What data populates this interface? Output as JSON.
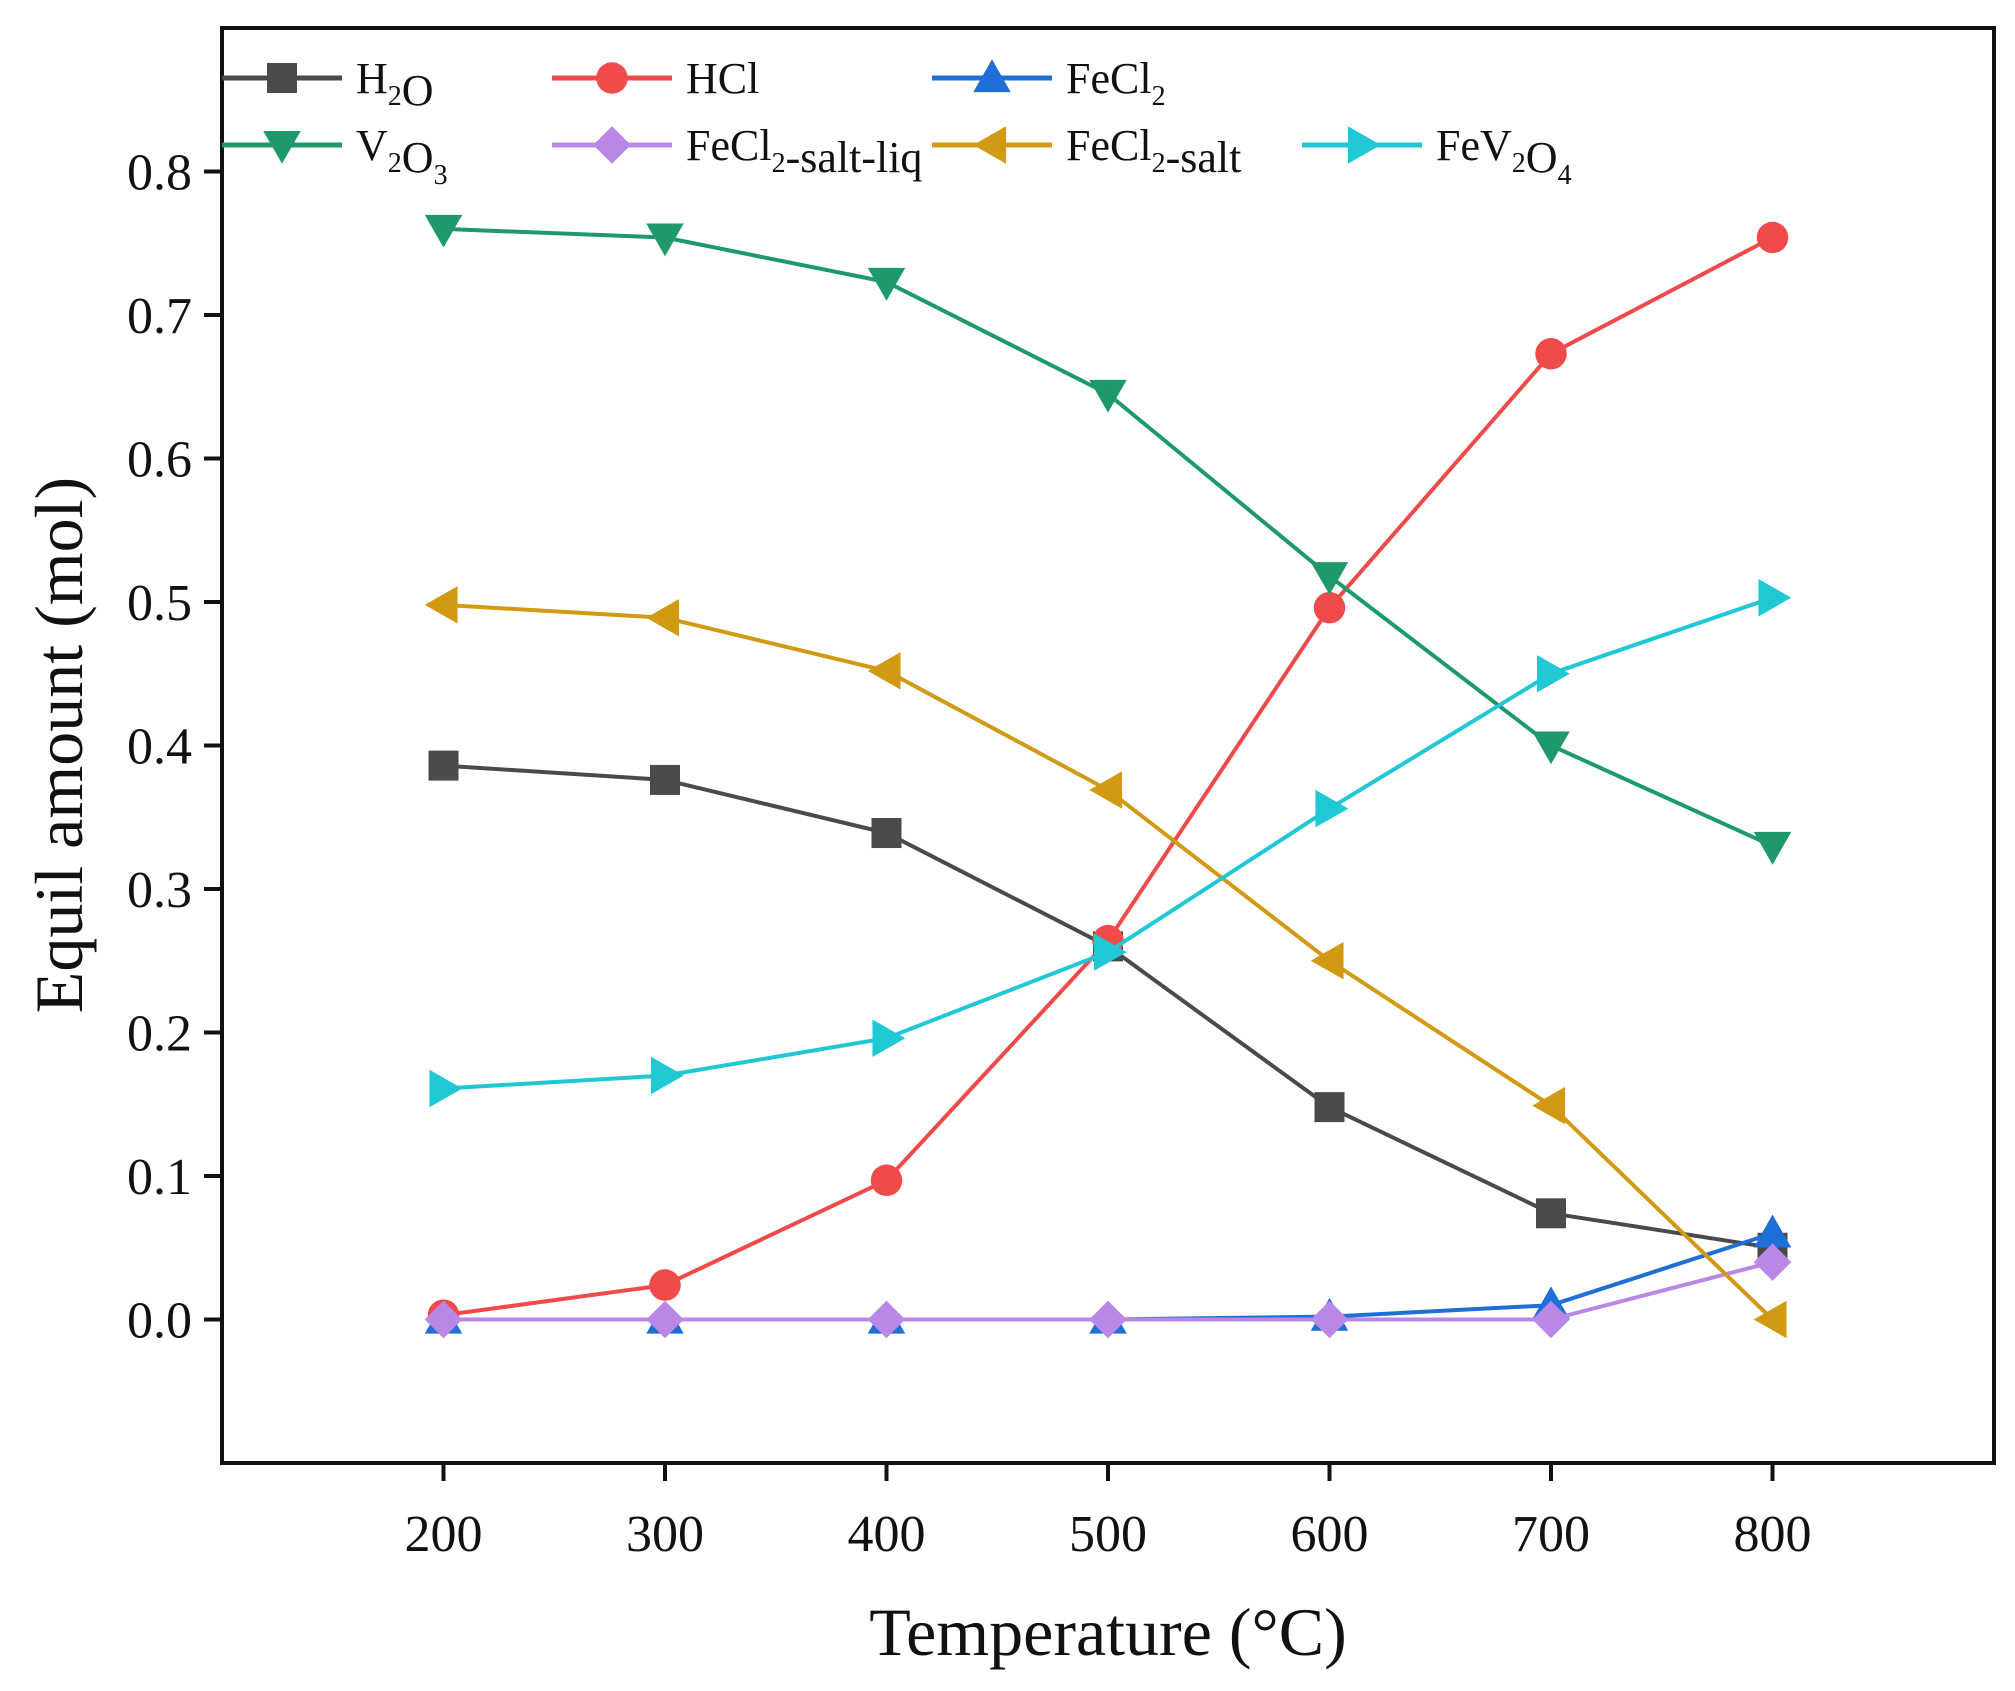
{
  "chart_data": {
    "type": "line",
    "xlabel": "Temperature (°C)",
    "ylabel": "Equil amount (mol)",
    "x": [
      200,
      300,
      400,
      500,
      600,
      700,
      800
    ],
    "xlim": [
      100,
      900
    ],
    "ylim": [
      -0.1,
      0.9
    ],
    "xticks": [
      "200",
      "300",
      "400",
      "500",
      "600",
      "700",
      "800"
    ],
    "yticks": [
      "0.0",
      "0.1",
      "0.2",
      "0.3",
      "0.4",
      "0.5",
      "0.6",
      "0.7",
      "0.8"
    ],
    "ytick_values": [
      0.0,
      0.1,
      0.2,
      0.3,
      0.4,
      0.5,
      0.6,
      0.7,
      0.8
    ],
    "grid": false,
    "legend_position": "top-left",
    "series": [
      {
        "name": "H2O",
        "legend": [
          [
            "H",
            ""
          ],
          [
            "2",
            "sub"
          ],
          [
            "O",
            ""
          ]
        ],
        "color": "#4a4a4a",
        "marker": "square",
        "values": [
          0.386,
          0.376,
          0.339,
          0.26,
          0.148,
          0.074,
          0.05
        ]
      },
      {
        "name": "HCl",
        "legend": [
          [
            "HCl",
            ""
          ]
        ],
        "color": "#f04a4a",
        "marker": "circle",
        "values": [
          0.003,
          0.024,
          0.097,
          0.264,
          0.496,
          0.673,
          0.754
        ]
      },
      {
        "name": "FeCl2",
        "legend": [
          [
            "FeCl",
            ""
          ],
          [
            "2",
            "sub"
          ]
        ],
        "color": "#1f6fd6",
        "marker": "triangle-up",
        "values": [
          0.0,
          0.0,
          0.0,
          0.0,
          0.002,
          0.01,
          0.06
        ]
      },
      {
        "name": "V2O3",
        "legend": [
          [
            "V",
            ""
          ],
          [
            "2",
            "sub"
          ],
          [
            "O",
            ""
          ],
          [
            "3",
            "sub"
          ]
        ],
        "color": "#1e9a6a",
        "marker": "triangle-down",
        "values": [
          0.76,
          0.754,
          0.723,
          0.645,
          0.518,
          0.4,
          0.33
        ]
      },
      {
        "name": "FeCl2-salt-liq",
        "legend": [
          [
            "FeCl",
            ""
          ],
          [
            "2",
            "sub"
          ],
          [
            "-salt-liq",
            ""
          ]
        ],
        "color": "#b987e6",
        "marker": "diamond",
        "values": [
          0.0,
          0.0,
          0.0,
          0.0,
          0.0,
          0.0,
          0.04
        ]
      },
      {
        "name": "FeCl2-salt",
        "legend": [
          [
            "FeCl",
            ""
          ],
          [
            "2",
            "sub"
          ],
          [
            "-salt",
            ""
          ]
        ],
        "color": "#d19a12",
        "marker": "triangle-left",
        "values": [
          0.498,
          0.489,
          0.452,
          0.369,
          0.25,
          0.149,
          0.0
        ]
      },
      {
        "name": "FeV2O4",
        "legend": [
          [
            "FeV",
            ""
          ],
          [
            "2",
            "sub"
          ],
          [
            "O",
            ""
          ],
          [
            "4",
            "sub"
          ]
        ],
        "color": "#1fc8d4",
        "marker": "triangle-right",
        "values": [
          0.161,
          0.17,
          0.196,
          0.256,
          0.356,
          0.45,
          0.503
        ]
      }
    ]
  }
}
